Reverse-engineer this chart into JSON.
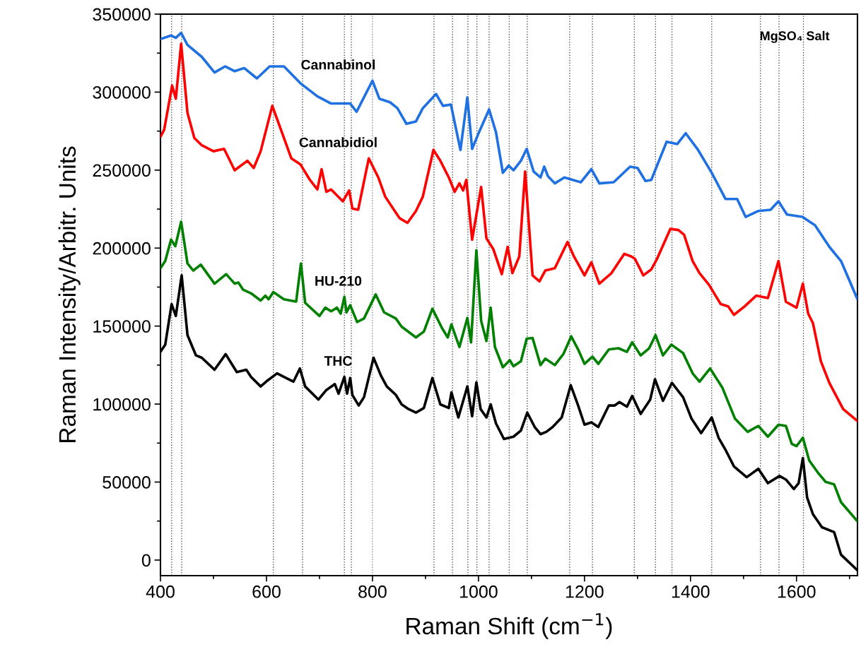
{
  "chart_data": {
    "type": "line",
    "xlabel": "Raman Shift (cm$^{−1}$)",
    "ylabel": "Raman Intensity/Arbitr. Units",
    "xlim": [
      400,
      1715
    ],
    "ylim": [
      -10000,
      350000
    ],
    "xticks": [
      400,
      600,
      800,
      1000,
      1200,
      1400,
      1600
    ],
    "yticks": [
      0,
      50000,
      100000,
      150000,
      200000,
      250000,
      300000,
      350000
    ],
    "grid": false,
    "legend": false,
    "marker": "none",
    "line_style": "solid",
    "annotations": [
      "MgSO₄ Salt"
    ],
    "ref_lines": [
      {
        "axis": "x",
        "value": 421,
        "color": "#555555",
        "line_style": "dotted"
      },
      {
        "axis": "x",
        "value": 440,
        "color": "#555555",
        "line_style": "dotted"
      },
      {
        "axis": "x",
        "value": 613,
        "color": "#555555",
        "line_style": "dotted"
      },
      {
        "axis": "x",
        "value": 668,
        "color": "#555555",
        "line_style": "dotted"
      },
      {
        "axis": "x",
        "value": 747,
        "color": "#555555",
        "line_style": "dotted"
      },
      {
        "axis": "x",
        "value": 760,
        "color": "#555555",
        "line_style": "dotted"
      },
      {
        "axis": "x",
        "value": 800,
        "color": "#8c8c8c",
        "line_style": "dotted"
      },
      {
        "axis": "x",
        "value": 916,
        "color": "#555555",
        "line_style": "dotted"
      },
      {
        "axis": "x",
        "value": 951,
        "color": "#555555",
        "line_style": "dotted"
      },
      {
        "axis": "x",
        "value": 980,
        "color": "#555555",
        "line_style": "dotted"
      },
      {
        "axis": "x",
        "value": 997,
        "color": "#555555",
        "line_style": "dotted"
      },
      {
        "axis": "x",
        "value": 1020,
        "color": "#555555",
        "line_style": "dotted"
      },
      {
        "axis": "x",
        "value": 1058,
        "color": "#555555",
        "line_style": "dotted"
      },
      {
        "axis": "x",
        "value": 1092,
        "color": "#555555",
        "line_style": "dotted"
      },
      {
        "axis": "x",
        "value": 1172,
        "color": "#555555",
        "line_style": "dotted"
      },
      {
        "axis": "x",
        "value": 1215,
        "color": "#555555",
        "line_style": "dotted"
      },
      {
        "axis": "x",
        "value": 1294,
        "color": "#555555",
        "line_style": "dotted"
      },
      {
        "axis": "x",
        "value": 1334,
        "color": "#555555",
        "line_style": "dotted"
      },
      {
        "axis": "x",
        "value": 1365,
        "color": "#555555",
        "line_style": "dotted"
      },
      {
        "axis": "x",
        "value": 1440,
        "color": "#555555",
        "line_style": "dotted"
      },
      {
        "axis": "x",
        "value": 1532,
        "color": "#555555",
        "line_style": "dotted"
      },
      {
        "axis": "x",
        "value": 1567,
        "color": "#555555",
        "line_style": "dotted"
      },
      {
        "axis": "x",
        "value": 1613,
        "color": "#555555",
        "line_style": "dotted"
      }
    ],
    "series": [
      {
        "name": "Cannabinol",
        "color": "#1f70e0",
        "x": [
          400,
          420,
          429,
          439,
          451,
          478,
          502,
          522,
          540,
          558,
          582,
          606,
          633,
          664,
          696,
          722,
          758,
          770,
          800,
          813,
          833,
          847,
          864,
          882,
          895,
          920,
          933,
          948,
          966,
          979,
          988,
          1002,
          1020,
          1033,
          1046,
          1057,
          1066,
          1080,
          1091,
          1104,
          1117,
          1124,
          1131,
          1144,
          1162,
          1193,
          1213,
          1228,
          1255,
          1286,
          1300,
          1315,
          1326,
          1355,
          1375,
          1391,
          1413,
          1440,
          1466,
          1488,
          1504,
          1528,
          1551,
          1566,
          1582,
          1611,
          1635,
          1662,
          1684,
          1715
        ],
        "values": [
          334000,
          336300,
          334800,
          338000,
          330200,
          322600,
          312600,
          316500,
          313400,
          315400,
          308800,
          316500,
          316500,
          305700,
          297300,
          292700,
          292700,
          287400,
          307300,
          295800,
          293500,
          289700,
          279700,
          281200,
          289700,
          298800,
          291200,
          292000,
          262900,
          296600,
          263600,
          275100,
          288900,
          274300,
          248300,
          252900,
          249900,
          256000,
          263600,
          249100,
          245300,
          252200,
          246100,
          241500,
          245300,
          242200,
          250600,
          241500,
          242200,
          252200,
          251400,
          243000,
          243700,
          268200,
          266700,
          273600,
          263600,
          248300,
          231500,
          231500,
          220000,
          223800,
          224600,
          230000,
          221500,
          220000,
          214600,
          200800,
          191700,
          167200
        ]
      },
      {
        "name": "Cannabidiol",
        "color": "#ff0000",
        "x": [
          400,
          407,
          422,
          429,
          439,
          451,
          464,
          478,
          500,
          520,
          540,
          564,
          576,
          589,
          611,
          629,
          647,
          664,
          682,
          696,
          704,
          713,
          722,
          744,
          756,
          762,
          773,
          793,
          811,
          824,
          842,
          851,
          866,
          882,
          895,
          915,
          928,
          944,
          955,
          964,
          971,
          977,
          988,
          1005,
          1015,
          1028,
          1044,
          1055,
          1064,
          1077,
          1088,
          1102,
          1115,
          1126,
          1144,
          1168,
          1180,
          1200,
          1213,
          1228,
          1251,
          1275,
          1288,
          1295,
          1311,
          1326,
          1337,
          1362,
          1377,
          1388,
          1404,
          1417,
          1435,
          1457,
          1471,
          1482,
          1502,
          1524,
          1546,
          1566,
          1580,
          1600,
          1612,
          1622,
          1631,
          1646,
          1662,
          1688,
          1715
        ],
        "values": [
          271300,
          275900,
          304200,
          295800,
          331000,
          286600,
          270500,
          265900,
          262100,
          263600,
          249900,
          256000,
          251400,
          262100,
          291200,
          274300,
          257500,
          253700,
          243700,
          237600,
          250600,
          236100,
          237600,
          230000,
          236900,
          225400,
          224600,
          257500,
          245300,
          233000,
          223800,
          219200,
          216200,
          223800,
          233000,
          262900,
          256000,
          245300,
          236100,
          241500,
          236900,
          243700,
          205400,
          239200,
          206200,
          199300,
          183300,
          200800,
          184000,
          194700,
          249100,
          182500,
          178700,
          185600,
          187100,
          203900,
          194700,
          182500,
          190900,
          177200,
          184000,
          196300,
          194700,
          193200,
          182500,
          186300,
          193200,
          212300,
          211600,
          208500,
          191700,
          184000,
          176400,
          164100,
          162600,
          157200,
          162600,
          169500,
          168000,
          191700,
          165600,
          161800,
          177200,
          158000,
          151900,
          127400,
          113600,
          96800,
          89100
        ]
      },
      {
        "name": "HU-210",
        "color": "#008000",
        "x": [
          400,
          409,
          420,
          428,
          439,
          451,
          462,
          476,
          502,
          524,
          540,
          547,
          556,
          571,
          589,
          598,
          604,
          613,
          633,
          656,
          665,
          673,
          700,
          711,
          722,
          733,
          740,
          747,
          751,
          758,
          771,
          784,
          806,
          822,
          844,
          855,
          882,
          897,
          913,
          931,
          942,
          949,
          964,
          979,
          986,
          996,
          1005,
          1015,
          1023,
          1031,
          1046,
          1059,
          1066,
          1080,
          1091,
          1102,
          1117,
          1126,
          1144,
          1160,
          1175,
          1188,
          1200,
          1215,
          1226,
          1246,
          1264,
          1280,
          1290,
          1306,
          1322,
          1334,
          1348,
          1364,
          1386,
          1404,
          1417,
          1437,
          1460,
          1484,
          1508,
          1528,
          1546,
          1566,
          1580,
          1591,
          1600,
          1612,
          1624,
          1640,
          1655,
          1671,
          1684,
          1715
        ],
        "values": [
          187100,
          191700,
          205400,
          201200,
          216900,
          190100,
          185600,
          189400,
          177200,
          183300,
          177200,
          177900,
          173300,
          171000,
          166400,
          169500,
          167200,
          171800,
          167200,
          165700,
          190100,
          164900,
          156500,
          161800,
          159500,
          161800,
          158000,
          168700,
          158800,
          163400,
          152600,
          154900,
          170300,
          158800,
          154900,
          149600,
          142700,
          146500,
          161100,
          148800,
          142700,
          151100,
          136600,
          155200,
          139600,
          198600,
          153400,
          140400,
          161800,
          136600,
          123600,
          128100,
          124300,
          127400,
          141900,
          142400,
          125000,
          129100,
          125000,
          132000,
          143400,
          135000,
          125800,
          130400,
          125800,
          135000,
          135800,
          133500,
          139600,
          131200,
          135800,
          144200,
          131200,
          138100,
          132700,
          119700,
          114400,
          122800,
          110600,
          90600,
          82200,
          86000,
          79100,
          86800,
          86000,
          74500,
          73000,
          78400,
          63800,
          56200,
          50100,
          48500,
          37100,
          24800
        ]
      },
      {
        "name": "THC",
        "color": "#000000",
        "x": [
          400,
          409,
          421,
          429,
          440,
          451,
          467,
          478,
          502,
          523,
          544,
          562,
          571,
          589,
          602,
          620,
          633,
          651,
          663,
          673,
          698,
          713,
          729,
          736,
          747,
          752,
          758,
          762,
          774,
          784,
          802,
          816,
          827,
          844,
          855,
          868,
          882,
          897,
          913,
          928,
          944,
          949,
          962,
          979,
          988,
          996,
          1004,
          1015,
          1023,
          1033,
          1048,
          1066,
          1080,
          1092,
          1106,
          1117,
          1128,
          1140,
          1157,
          1174,
          1188,
          1200,
          1213,
          1226,
          1246,
          1257,
          1266,
          1280,
          1290,
          1306,
          1324,
          1333,
          1348,
          1365,
          1386,
          1402,
          1420,
          1440,
          1453,
          1466,
          1482,
          1506,
          1528,
          1546,
          1568,
          1580,
          1595,
          1604,
          1612,
          1620,
          1631,
          1648,
          1671,
          1684,
          1715
        ],
        "values": [
          133500,
          138100,
          164100,
          156500,
          182500,
          144200,
          131200,
          129700,
          122000,
          132000,
          120500,
          122000,
          117400,
          111300,
          115100,
          119700,
          117400,
          114400,
          122800,
          111300,
          102900,
          109000,
          112800,
          106700,
          117400,
          106700,
          116700,
          105900,
          99100,
          104400,
          129700,
          118200,
          111300,
          105900,
          99800,
          96800,
          94500,
          97500,
          116700,
          99800,
          97500,
          107500,
          91400,
          111300,
          92200,
          113900,
          96800,
          91400,
          99800,
          87600,
          77600,
          79100,
          83000,
          94500,
          85300,
          80700,
          82200,
          85300,
          91400,
          112100,
          99100,
          86800,
          88300,
          85300,
          99100,
          99100,
          101300,
          98300,
          105200,
          93700,
          102900,
          115900,
          102100,
          113600,
          104400,
          90600,
          81400,
          91400,
          78400,
          70700,
          60000,
          53100,
          58500,
          49300,
          53900,
          51600,
          45500,
          49300,
          65400,
          40100,
          29400,
          21000,
          17900,
          3400,
          -6600
        ]
      }
    ]
  }
}
